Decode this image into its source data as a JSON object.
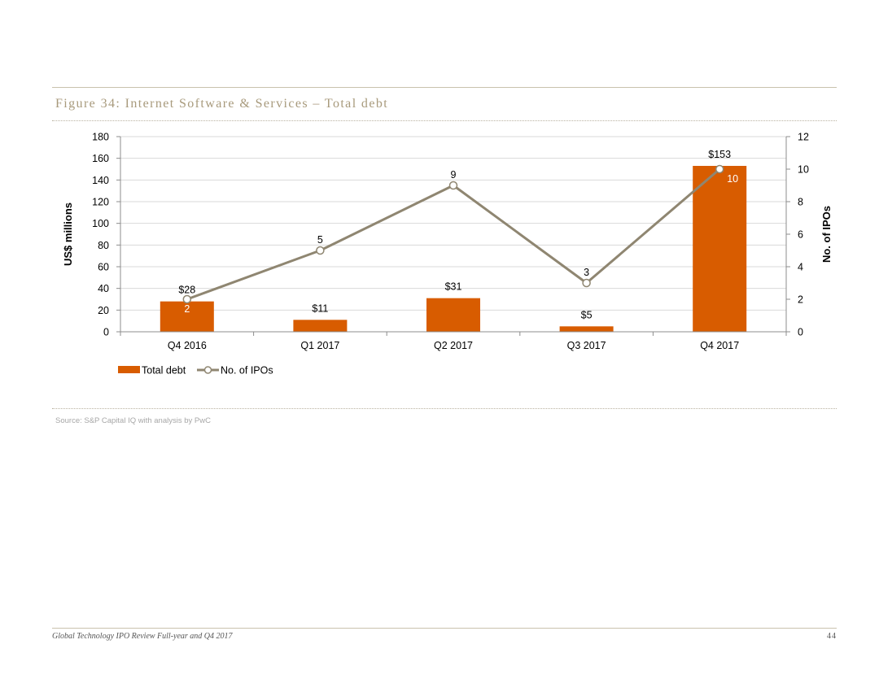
{
  "figure_title": "Figure 34: Internet Software & Services – Total debt",
  "source": "Source: S&P Capital IQ with analysis by PwC",
  "footer": {
    "doc_title": "Global Technology IPO Review Full-year and Q4 2017",
    "page_number": "44"
  },
  "colors": {
    "bar": "#D85C00",
    "line": "#8F8671",
    "gridline": "#d9d9d9",
    "rule": "#c9c2ad"
  },
  "chart_data": {
    "type": "bar",
    "title": "Figure 34: Internet Software & Services – Total debt",
    "categories": [
      "Q4 2016",
      "Q1 2017",
      "Q2 2017",
      "Q3 2017",
      "Q4 2017"
    ],
    "series": [
      {
        "name": "Total debt",
        "type": "bar",
        "axis": "left",
        "values": [
          28,
          11,
          31,
          5,
          153
        ],
        "labels": [
          "$28",
          "$11",
          "$31",
          "$5",
          "$153"
        ]
      },
      {
        "name": "No. of IPOs",
        "type": "line",
        "axis": "right",
        "values": [
          2,
          5,
          9,
          3,
          10
        ],
        "labels": [
          "2",
          "5",
          "9",
          "3",
          "10"
        ]
      }
    ],
    "ylabel": "US$ millions",
    "ylim": [
      0,
      180
    ],
    "yticks": [
      0,
      20,
      40,
      60,
      80,
      100,
      120,
      140,
      160,
      180
    ],
    "y2label": "No. of IPOs",
    "y2lim": [
      0,
      12
    ],
    "y2ticks": [
      0,
      2,
      4,
      6,
      8,
      10,
      12
    ],
    "grid": true,
    "legend_position": "bottom-left"
  }
}
